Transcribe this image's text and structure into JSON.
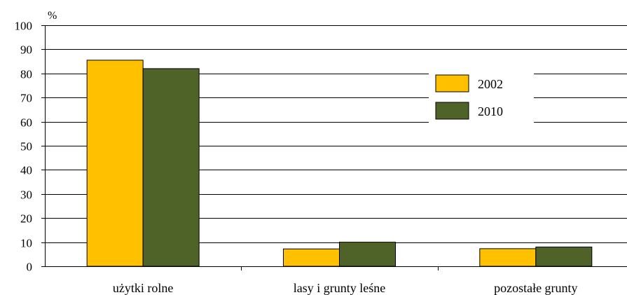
{
  "chart_data": {
    "type": "bar",
    "title": "",
    "xlabel": "",
    "ylabel": "%",
    "ylim": [
      0,
      100
    ],
    "yticks": [
      "0",
      "10",
      "20",
      "30",
      "40",
      "50",
      "60",
      "70",
      "80",
      "90",
      "100"
    ],
    "categories": [
      "użytki rolne",
      "lasy i grunty leśne",
      "pozostałe grunty"
    ],
    "series": [
      {
        "name": "2002",
        "color": "#FFC000",
        "values": [
          85.5,
          7.2,
          7.3
        ]
      },
      {
        "name": "2010",
        "color": "#4F6228",
        "values": [
          82.0,
          10.0,
          8.0
        ]
      }
    ],
    "grid": true,
    "legend": "right"
  }
}
